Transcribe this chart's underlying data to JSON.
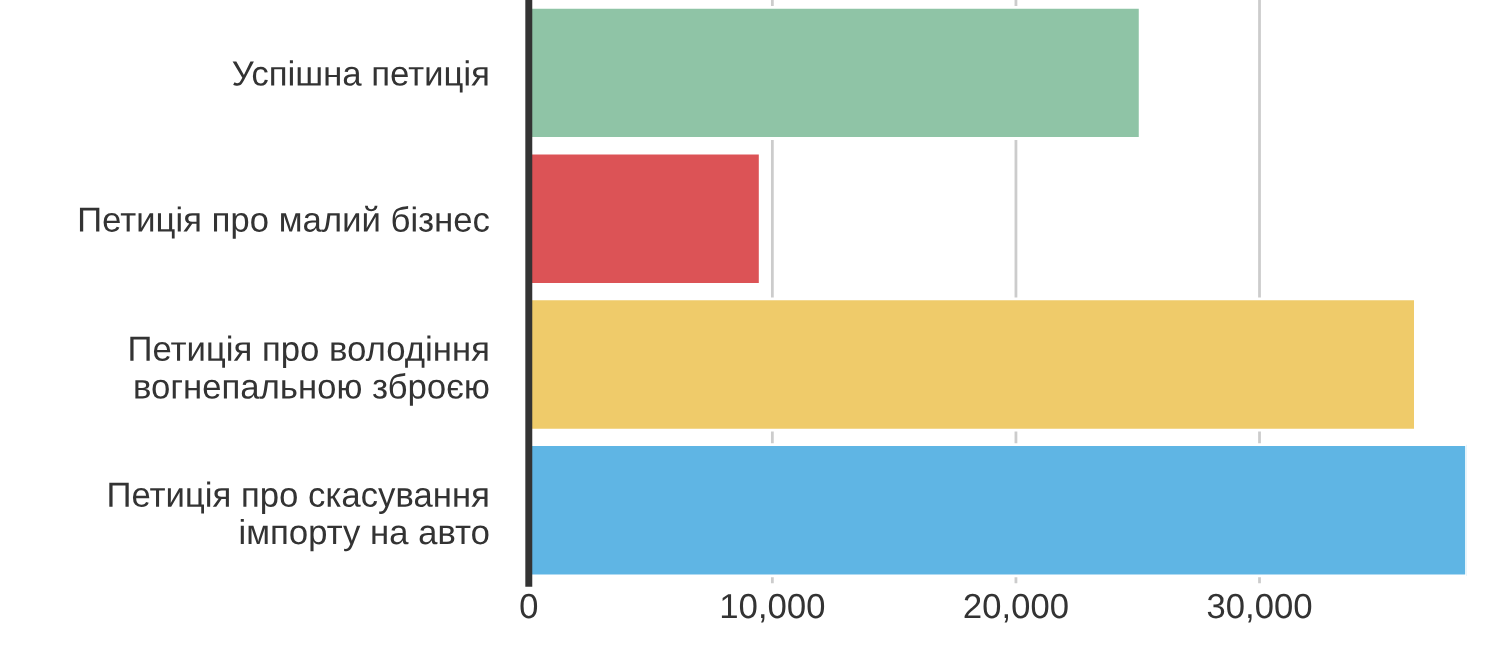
{
  "chart_data": {
    "type": "bar",
    "orientation": "horizontal",
    "categories": [
      "Успішна петиція",
      "Петиція про малий бізнес",
      "Петиція про володіння\nвогнепальною зброєю",
      "Петиція про скасування\nімпорту на авто"
    ],
    "values": [
      25100,
      9500,
      36400,
      38500
    ],
    "colors": [
      "#8fc4a6",
      "#dc5356",
      "#efcb6a",
      "#5fb5e4"
    ],
    "xlim": [
      0,
      38500
    ],
    "xticks": [
      0,
      {
        "value": 10000,
        "label": "10,000"
      },
      {
        "value": 20000,
        "label": "20,000"
      },
      {
        "value": 30000,
        "label": "30,000"
      }
    ],
    "grid": "x"
  }
}
